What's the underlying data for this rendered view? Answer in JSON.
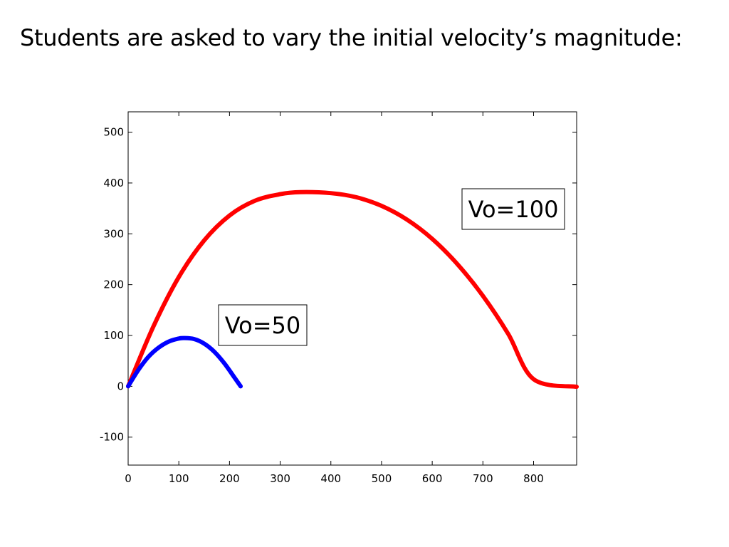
{
  "slide": {
    "title": "Students are asked to vary the initial velocity’s magnitude:"
  },
  "chart_data": {
    "type": "line",
    "title": "",
    "xlabel": "",
    "ylabel": "",
    "xlim": [
      0,
      885
    ],
    "ylim": [
      -155,
      540
    ],
    "xticks": [
      0,
      100,
      200,
      300,
      400,
      500,
      600,
      700,
      800
    ],
    "yticks": [
      -100,
      0,
      100,
      200,
      300,
      400,
      500
    ],
    "grid": false,
    "series": [
      {
        "color": "#ff0000",
        "points": [
          [
            0,
            0
          ],
          [
            50,
            118
          ],
          [
            100,
            215
          ],
          [
            150,
            287
          ],
          [
            200,
            336
          ],
          [
            250,
            365
          ],
          [
            300,
            378
          ],
          [
            340,
            382
          ],
          [
            400,
            380
          ],
          [
            450,
            372
          ],
          [
            500,
            355
          ],
          [
            550,
            328
          ],
          [
            600,
            290
          ],
          [
            650,
            240
          ],
          [
            700,
            178
          ],
          [
            750,
            103
          ],
          [
            800,
            14
          ],
          [
            885,
            -1
          ]
        ]
      },
      {
        "color": "#0000ff",
        "points": [
          [
            0,
            0
          ],
          [
            20,
            32
          ],
          [
            40,
            58
          ],
          [
            60,
            76
          ],
          [
            80,
            88
          ],
          [
            100,
            94
          ],
          [
            110,
            95
          ],
          [
            130,
            93
          ],
          [
            150,
            84
          ],
          [
            170,
            68
          ],
          [
            190,
            45
          ],
          [
            210,
            17
          ],
          [
            222,
            0
          ]
        ]
      }
    ],
    "annotations": [
      {
        "text": "Vo=100"
      },
      {
        "text": "Vo=50"
      }
    ]
  }
}
